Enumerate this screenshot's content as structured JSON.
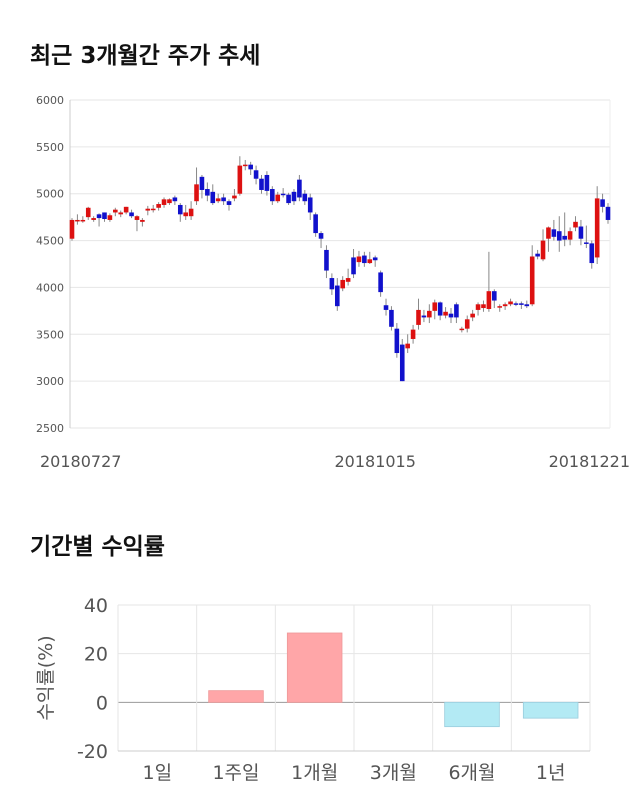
{
  "section1": {
    "title": "최근 3개월간 주가 추세"
  },
  "section2": {
    "title": "기간별 수익률"
  },
  "chart_data": [
    {
      "type": "candlestick",
      "y_ticks": [
        2500,
        3000,
        3500,
        4000,
        4500,
        5000,
        5500,
        6000
      ],
      "ylim": [
        2500,
        6000
      ],
      "x_tick_labels": [
        {
          "label": "20180727",
          "index": 0
        },
        {
          "label": "20181015",
          "index": 56
        },
        {
          "label": "20181221",
          "index": 105
        }
      ],
      "colors": {
        "up": "#dd1111",
        "down": "#1111cc",
        "grid": "#e6e6e6"
      },
      "candles": [
        [
          4520,
          4720,
          4740,
          4500
        ],
        [
          4720,
          4720,
          4780,
          4670
        ],
        [
          4720,
          4720,
          4760,
          4690
        ],
        [
          4750,
          4850,
          4860,
          4720
        ],
        [
          4720,
          4740,
          4760,
          4700
        ],
        [
          4780,
          4740,
          4790,
          4650
        ],
        [
          4800,
          4730,
          4800,
          4700
        ],
        [
          4720,
          4770,
          4790,
          4700
        ],
        [
          4800,
          4830,
          4850,
          4760
        ],
        [
          4780,
          4800,
          4820,
          4750
        ],
        [
          4800,
          4860,
          4860,
          4780
        ],
        [
          4800,
          4760,
          4830,
          4740
        ],
        [
          4720,
          4760,
          4770,
          4600
        ],
        [
          4700,
          4720,
          4740,
          4650
        ],
        [
          4820,
          4840,
          4870,
          4770
        ],
        [
          4830,
          4840,
          4880,
          4800
        ],
        [
          4850,
          4890,
          4910,
          4820
        ],
        [
          4880,
          4940,
          4960,
          4850
        ],
        [
          4900,
          4940,
          4950,
          4880
        ],
        [
          4960,
          4920,
          4980,
          4880
        ],
        [
          4880,
          4780,
          4900,
          4700
        ],
        [
          4760,
          4800,
          4880,
          4720
        ],
        [
          4760,
          4840,
          4920,
          4720
        ],
        [
          4920,
          5100,
          5280,
          4880
        ],
        [
          5180,
          5040,
          5200,
          4950
        ],
        [
          5050,
          4980,
          5120,
          4920
        ],
        [
          5020,
          4900,
          5100,
          4880
        ],
        [
          4920,
          4950,
          5000,
          4900
        ],
        [
          4960,
          4920,
          5000,
          4880
        ],
        [
          4920,
          4880,
          4940,
          4820
        ],
        [
          4950,
          4980,
          5050,
          4920
        ],
        [
          5000,
          5300,
          5400,
          4980
        ],
        [
          5300,
          5310,
          5360,
          5250
        ],
        [
          5310,
          5260,
          5340,
          5200
        ],
        [
          5250,
          5160,
          5300,
          5100
        ],
        [
          5160,
          5040,
          5200,
          5000
        ],
        [
          5200,
          5030,
          5240,
          4980
        ],
        [
          5050,
          4920,
          5080,
          4880
        ],
        [
          4920,
          4990,
          5020,
          4900
        ],
        [
          5000,
          4990,
          5060,
          4960
        ],
        [
          4990,
          4900,
          5010,
          4880
        ],
        [
          5020,
          4920,
          5050,
          4880
        ],
        [
          5150,
          4960,
          5200,
          4920
        ],
        [
          5000,
          4920,
          5040,
          4880
        ],
        [
          4960,
          4800,
          5000,
          4720
        ],
        [
          4780,
          4580,
          4800,
          4540
        ],
        [
          4580,
          4520,
          4600,
          4420
        ],
        [
          4400,
          4180,
          4450,
          4100
        ],
        [
          4100,
          3980,
          4150,
          3920
        ],
        [
          4020,
          3800,
          4100,
          3750
        ],
        [
          3990,
          4080,
          4120,
          3960
        ],
        [
          4060,
          4100,
          4200,
          4020
        ],
        [
          4320,
          4140,
          4410,
          4100
        ],
        [
          4270,
          4330,
          4390,
          4220
        ],
        [
          4340,
          4260,
          4380,
          4220
        ],
        [
          4260,
          4300,
          4380,
          4250
        ],
        [
          4320,
          4290,
          4340,
          4220
        ],
        [
          4160,
          3950,
          4180,
          3900
        ],
        [
          3810,
          3760,
          3880,
          3700
        ],
        [
          3760,
          3580,
          3800,
          3540
        ],
        [
          3560,
          3300,
          3620,
          3250
        ],
        [
          3390,
          3000,
          3450,
          3000
        ],
        [
          3350,
          3400,
          3500,
          3300
        ],
        [
          3450,
          3550,
          3600,
          3400
        ],
        [
          3600,
          3760,
          3880,
          3550
        ],
        [
          3700,
          3680,
          3760,
          3630
        ],
        [
          3680,
          3750,
          3820,
          3620
        ],
        [
          3750,
          3840,
          3870,
          3660
        ],
        [
          3840,
          3700,
          3850,
          3650
        ],
        [
          3700,
          3740,
          3790,
          3670
        ],
        [
          3720,
          3680,
          3780,
          3620
        ],
        [
          3820,
          3680,
          3840,
          3620
        ],
        [
          3560,
          3560,
          3580,
          3520
        ],
        [
          3560,
          3660,
          3700,
          3520
        ],
        [
          3680,
          3720,
          3760,
          3640
        ],
        [
          3760,
          3820,
          3840,
          3700
        ],
        [
          3780,
          3820,
          3860,
          3740
        ],
        [
          3770,
          3960,
          4380,
          3740
        ],
        [
          3960,
          3860,
          3980,
          3780
        ],
        [
          3800,
          3800,
          3820,
          3740
        ],
        [
          3800,
          3820,
          3840,
          3760
        ],
        [
          3820,
          3850,
          3880,
          3800
        ],
        [
          3830,
          3820,
          3850,
          3800
        ],
        [
          3830,
          3820,
          3850,
          3770
        ],
        [
          3820,
          3800,
          3860,
          3780
        ],
        [
          3820,
          4330,
          4450,
          3800
        ],
        [
          4360,
          4330,
          4400,
          4300
        ],
        [
          4300,
          4500,
          4620,
          4280
        ],
        [
          4520,
          4640,
          4650,
          4380
        ],
        [
          4620,
          4540,
          4720,
          4500
        ],
        [
          4600,
          4500,
          4760,
          4380
        ],
        [
          4550,
          4510,
          4800,
          4440
        ],
        [
          4510,
          4600,
          4640,
          4450
        ],
        [
          4640,
          4700,
          4760,
          4600
        ],
        [
          4650,
          4520,
          4720,
          4450
        ],
        [
          4480,
          4470,
          4660,
          4420
        ],
        [
          4470,
          4260,
          4500,
          4200
        ],
        [
          4320,
          4950,
          5080,
          4250
        ],
        [
          4940,
          4860,
          5000,
          4800
        ],
        [
          4860,
          4720,
          4900,
          4680
        ]
      ]
    },
    {
      "type": "bar",
      "ylabel": "수익률(%)",
      "categories": [
        "1일",
        "1주일",
        "1개월",
        "3개월",
        "6개월",
        "1년"
      ],
      "values": [
        0,
        4.8,
        28.5,
        0,
        -10.0,
        -6.5
      ],
      "ylim": [
        -20,
        40
      ],
      "y_ticks": [
        40,
        20,
        0,
        -20
      ],
      "colors": {
        "positive": "#ffa6a8",
        "negative": "#b3eaf4"
      }
    }
  ]
}
